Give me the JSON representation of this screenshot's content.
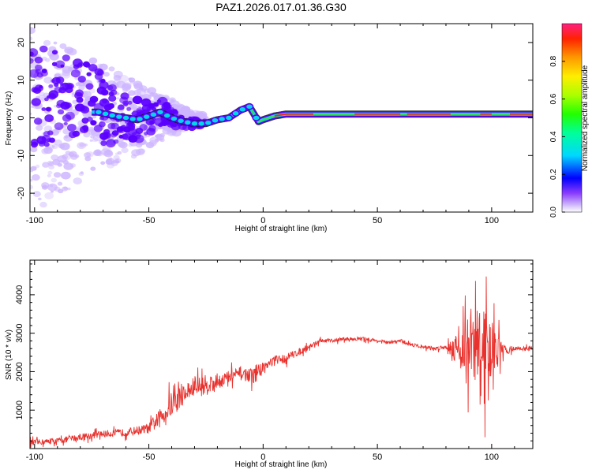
{
  "title": "PAZ1.2026.017.01.36.G30",
  "colors": {
    "background": "#ffffff",
    "axes": "#000000",
    "snr_line": "#e8322e",
    "spectrum_fill": "#5b00ff",
    "spectrum_halo": "#cdb5ff",
    "track_edge": "#101010",
    "track_core_green": "#2ee05a",
    "track_core_red": "#ff2020",
    "track_core_cyan": "#00d8e8"
  },
  "chart_data": [
    {
      "type": "heatmap",
      "name": "spectrogram",
      "title": "PAZ1.2026.017.01.36.G30",
      "xlabel": "Height of straight line (km)",
      "ylabel": "Frequency (Hz)",
      "xlim": [
        -102,
        118
      ],
      "ylim": [
        -25,
        25
      ],
      "xticks": [
        -100,
        -50,
        0,
        50,
        100
      ],
      "xtick_labels": [
        "-100",
        "-50",
        "0",
        "50",
        "100"
      ],
      "yticks": [
        -20,
        -10,
        0,
        10,
        20
      ],
      "ytick_labels": [
        "-20",
        "-10",
        "0",
        "10",
        "20"
      ],
      "colormap": "rainbow",
      "colorbar": {
        "label": "Normalized spectral amplitude",
        "range": [
          0,
          1
        ],
        "ticks": [
          0.0,
          0.2,
          0.4,
          0.6,
          0.8
        ],
        "tick_labels": [
          "0.0",
          "0.2",
          "0.4",
          "0.6",
          "0.8"
        ]
      },
      "track": {
        "x": [
          -72,
          -65,
          -60,
          -55,
          -50,
          -45,
          -40,
          -35,
          -30,
          -25,
          -20,
          -15,
          -10,
          -6,
          -4,
          -2,
          0,
          5,
          10,
          20,
          30,
          40,
          50,
          60,
          70,
          80,
          90,
          100,
          105,
          110,
          118
        ],
        "y": [
          1.5,
          0.5,
          0.0,
          -0.5,
          0.5,
          1.5,
          0.0,
          -1.0,
          -1.5,
          -1.5,
          -0.5,
          0.0,
          2.0,
          3.0,
          1.0,
          -1.0,
          -0.5,
          0.5,
          1.0,
          1.0,
          1.0,
          1.0,
          1.0,
          1.0,
          1.0,
          1.0,
          1.0,
          1.0,
          1.0,
          1.0,
          1.0
        ]
      },
      "scatter_region": {
        "x_range": [
          -102,
          -25
        ],
        "y_range": [
          -25,
          25
        ]
      }
    },
    {
      "type": "line",
      "name": "snr",
      "xlabel": "Height of straight line (km)",
      "ylabel": "SNR (10 * v/v)",
      "xlim": [
        -102,
        118
      ],
      "ylim": [
        0,
        4900
      ],
      "xticks": [
        -100,
        -50,
        0,
        50,
        100
      ],
      "xtick_labels": [
        "-100",
        "-50",
        "0",
        "50",
        "100"
      ],
      "yticks": [
        1000,
        2000,
        3000,
        4000
      ],
      "ytick_labels": [
        "1000",
        "2000",
        "3000",
        "4000"
      ],
      "series": [
        {
          "name": "SNR",
          "x": [
            -102,
            -90,
            -80,
            -70,
            -60,
            -50,
            -45,
            -40,
            -35,
            -30,
            -25,
            -20,
            -15,
            -10,
            -5,
            0,
            5,
            10,
            15,
            20,
            25,
            30,
            35,
            40,
            45,
            50,
            55,
            60,
            65,
            70,
            75,
            80,
            85,
            90,
            95,
            100,
            105,
            110,
            118
          ],
          "values": [
            150,
            200,
            300,
            380,
            420,
            520,
            800,
            1150,
            1400,
            1600,
            1650,
            1750,
            1850,
            1950,
            1900,
            2100,
            2300,
            2350,
            2500,
            2650,
            2800,
            2800,
            2850,
            2850,
            2850,
            2800,
            2750,
            2800,
            2700,
            2650,
            2600,
            2650,
            2600,
            2600,
            2550,
            2600,
            2550,
            2600,
            2600
          ],
          "noise_amp": [
            120,
            120,
            150,
            150,
            160,
            220,
            400,
            550,
            450,
            450,
            450,
            350,
            300,
            300,
            300,
            300,
            200,
            200,
            150,
            120,
            80,
            80,
            80,
            80,
            80,
            80,
            80,
            80,
            80,
            80,
            80,
            100,
            700,
            1400,
            2200,
            1200,
            250,
            100,
            100
          ]
        }
      ]
    }
  ]
}
